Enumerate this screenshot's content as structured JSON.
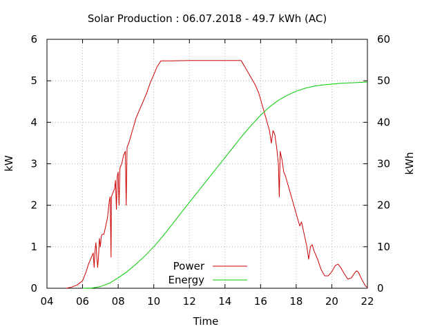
{
  "chart_data": {
    "type": "line",
    "title": "Solar Production : 06.07.2018 - 49.7 kWh (AC)",
    "xlabel": "Time",
    "ylabel": "kW",
    "y2label": "kWh",
    "xlim": [
      4,
      22
    ],
    "ylim": [
      0,
      6
    ],
    "y2lim": [
      0,
      60
    ],
    "x_ticks": [
      "04",
      "06",
      "08",
      "10",
      "12",
      "14",
      "16",
      "18",
      "20",
      "22"
    ],
    "y_ticks": [
      "0",
      "1",
      "2",
      "3",
      "4",
      "5",
      "6"
    ],
    "y2_ticks": [
      "0",
      "10",
      "20",
      "30",
      "40",
      "50",
      "60"
    ],
    "grid": true,
    "legend_position": "bottom-center",
    "series": [
      {
        "name": "Power",
        "axis": "left",
        "color": "#cc0000",
        "points": [
          [
            5.1,
            0.0
          ],
          [
            5.4,
            0.03
          ],
          [
            5.7,
            0.08
          ],
          [
            6.0,
            0.18
          ],
          [
            6.2,
            0.4
          ],
          [
            6.35,
            0.6
          ],
          [
            6.5,
            0.75
          ],
          [
            6.6,
            0.85
          ],
          [
            6.65,
            0.5
          ],
          [
            6.7,
            0.9
          ],
          [
            6.75,
            1.1
          ],
          [
            6.8,
            0.75
          ],
          [
            6.85,
            0.5
          ],
          [
            6.9,
            0.8
          ],
          [
            6.95,
            1.2
          ],
          [
            7.0,
            1.0
          ],
          [
            7.05,
            1.25
          ],
          [
            7.1,
            1.3
          ],
          [
            7.2,
            1.3
          ],
          [
            7.3,
            1.5
          ],
          [
            7.4,
            1.7
          ],
          [
            7.45,
            1.9
          ],
          [
            7.5,
            2.1
          ],
          [
            7.55,
            2.2
          ],
          [
            7.6,
            0.75
          ],
          [
            7.62,
            2.2
          ],
          [
            7.7,
            2.3
          ],
          [
            7.8,
            2.4
          ],
          [
            7.85,
            2.6
          ],
          [
            7.9,
            1.9
          ],
          [
            7.95,
            2.7
          ],
          [
            8.0,
            2.8
          ],
          [
            8.05,
            2.0
          ],
          [
            8.1,
            2.9
          ],
          [
            8.2,
            3.0
          ],
          [
            8.3,
            3.2
          ],
          [
            8.4,
            3.3
          ],
          [
            8.45,
            2.0
          ],
          [
            8.5,
            3.4
          ],
          [
            8.6,
            3.5
          ],
          [
            8.8,
            3.8
          ],
          [
            9.0,
            4.1
          ],
          [
            9.2,
            4.3
          ],
          [
            9.4,
            4.5
          ],
          [
            9.6,
            4.7
          ],
          [
            9.8,
            4.95
          ],
          [
            10.0,
            5.15
          ],
          [
            10.2,
            5.35
          ],
          [
            10.4,
            5.48
          ],
          [
            11.0,
            5.48
          ],
          [
            12.0,
            5.49
          ],
          [
            13.0,
            5.49
          ],
          [
            14.0,
            5.49
          ],
          [
            14.9,
            5.49
          ],
          [
            15.1,
            5.35
          ],
          [
            15.3,
            5.2
          ],
          [
            15.5,
            5.05
          ],
          [
            15.7,
            4.9
          ],
          [
            15.9,
            4.7
          ],
          [
            16.1,
            4.4
          ],
          [
            16.3,
            4.1
          ],
          [
            16.5,
            3.8
          ],
          [
            16.6,
            3.5
          ],
          [
            16.7,
            3.8
          ],
          [
            16.8,
            3.7
          ],
          [
            16.9,
            3.4
          ],
          [
            17.0,
            3.0
          ],
          [
            17.05,
            2.2
          ],
          [
            17.1,
            3.3
          ],
          [
            17.2,
            3.1
          ],
          [
            17.3,
            2.8
          ],
          [
            17.4,
            2.7
          ],
          [
            17.6,
            2.4
          ],
          [
            17.8,
            2.1
          ],
          [
            18.0,
            1.8
          ],
          [
            18.2,
            1.5
          ],
          [
            18.3,
            1.6
          ],
          [
            18.4,
            1.4
          ],
          [
            18.5,
            1.2
          ],
          [
            18.6,
            1.0
          ],
          [
            18.7,
            0.7
          ],
          [
            18.8,
            1.0
          ],
          [
            18.9,
            1.05
          ],
          [
            19.0,
            0.9
          ],
          [
            19.2,
            0.7
          ],
          [
            19.4,
            0.45
          ],
          [
            19.6,
            0.3
          ],
          [
            19.8,
            0.3
          ],
          [
            20.0,
            0.4
          ],
          [
            20.2,
            0.55
          ],
          [
            20.35,
            0.58
          ],
          [
            20.5,
            0.5
          ],
          [
            20.7,
            0.35
          ],
          [
            20.9,
            0.22
          ],
          [
            21.1,
            0.25
          ],
          [
            21.3,
            0.38
          ],
          [
            21.4,
            0.42
          ],
          [
            21.5,
            0.38
          ],
          [
            21.7,
            0.2
          ],
          [
            21.9,
            0.05
          ],
          [
            22.0,
            0.02
          ]
        ]
      },
      {
        "name": "Energy",
        "axis": "right",
        "color": "#00cc00",
        "points": [
          [
            6.0,
            0.0
          ],
          [
            6.5,
            0.05
          ],
          [
            7.0,
            0.4
          ],
          [
            7.5,
            1.2
          ],
          [
            8.0,
            2.5
          ],
          [
            8.5,
            4.0
          ],
          [
            9.0,
            5.8
          ],
          [
            9.5,
            7.8
          ],
          [
            10.0,
            10.0
          ],
          [
            10.5,
            12.5
          ],
          [
            11.0,
            15.2
          ],
          [
            11.5,
            18.0
          ],
          [
            12.0,
            20.7
          ],
          [
            12.5,
            23.4
          ],
          [
            13.0,
            26.1
          ],
          [
            13.5,
            28.8
          ],
          [
            14.0,
            31.5
          ],
          [
            14.5,
            34.2
          ],
          [
            15.0,
            36.9
          ],
          [
            15.5,
            39.4
          ],
          [
            16.0,
            41.7
          ],
          [
            16.5,
            43.7
          ],
          [
            17.0,
            45.3
          ],
          [
            17.5,
            46.5
          ],
          [
            18.0,
            47.5
          ],
          [
            18.5,
            48.2
          ],
          [
            19.0,
            48.7
          ],
          [
            19.5,
            49.0
          ],
          [
            20.0,
            49.2
          ],
          [
            20.5,
            49.4
          ],
          [
            21.0,
            49.5
          ],
          [
            21.5,
            49.6
          ],
          [
            22.0,
            49.7
          ]
        ]
      }
    ]
  }
}
